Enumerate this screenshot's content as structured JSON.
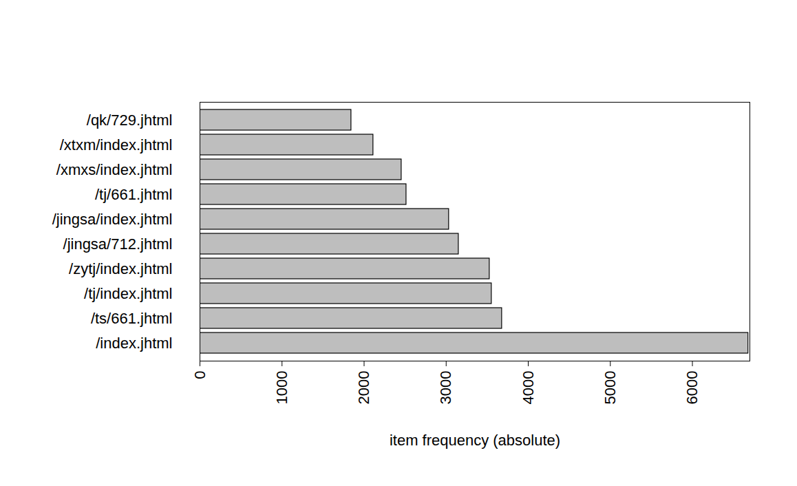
{
  "chart_data": {
    "type": "bar",
    "orientation": "horizontal",
    "categories": [
      "/qk/729.jhtml",
      "/xtxm/index.jhtml",
      "/xmxs/index.jhtml",
      "/tj/661.jhtml",
      "/jingsa/index.jhtml",
      "/jingsa/712.jhtml",
      "/zytj/index.jhtml",
      "/tj/index.jhtml",
      "/ts/661.jhtml",
      "/index.jhtml"
    ],
    "values": [
      1844,
      2112,
      2456,
      2515,
      3034,
      3152,
      3529,
      3554,
      3680,
      6681
    ],
    "color": "#bebebe",
    "xlabel": "item frequency (absolute)",
    "xlim": [
      0,
      6700
    ],
    "xticks": [
      0,
      1000,
      2000,
      3000,
      4000,
      5000,
      6000
    ],
    "grid": false
  }
}
